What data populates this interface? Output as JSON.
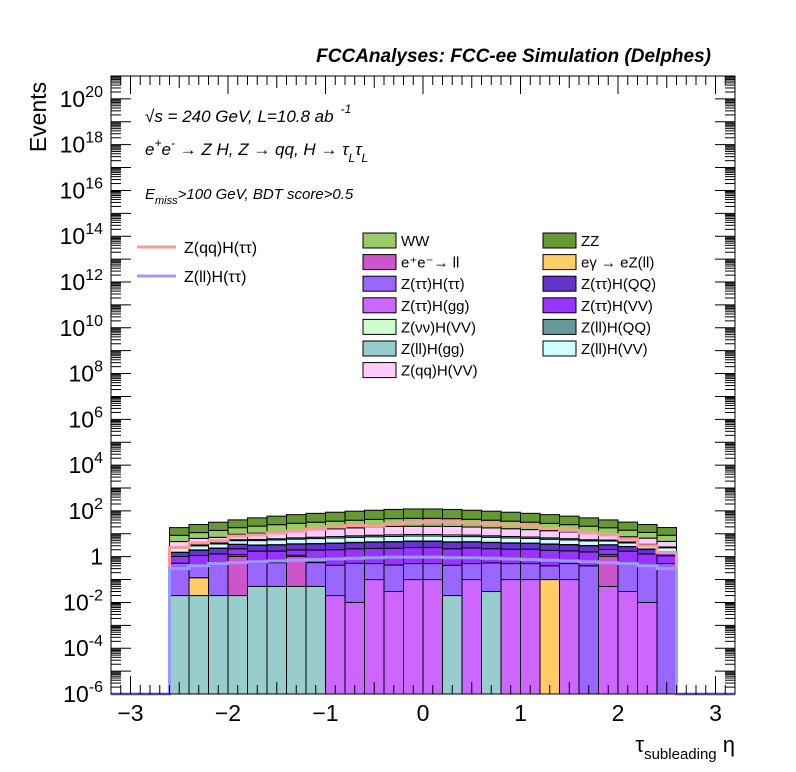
{
  "chart_data": {
    "type": "bar",
    "stacked": true,
    "log_y": true,
    "title": "FCCAnalyses: FCC-ee Simulation (Delphes)",
    "ylabel": "Events",
    "xlabel": "τ_subleading η",
    "xlabel_parts": {
      "main": "τ",
      "sub": "subleading",
      "tail": " η"
    },
    "annotations": {
      "energy": "√s = 240 GeV, L=10.8 ab",
      "energy_sup": "-1",
      "process": "e⁺e⁻ → Z H, Z → qq, H → τ_L τ_L",
      "process_parts": {
        "a": "e",
        "b": "+",
        "c": "e",
        "d": "-",
        "e": " → Z H, Z  → qq, H  → τ",
        "f": "L",
        "g": "τ",
        "h": "L"
      },
      "cuts": "E_miss>100 GeV, BDT score>0.5",
      "cuts_parts": {
        "a": "E",
        "b": "miss",
        "c": ">100 GeV, BDT score>0.5"
      }
    },
    "xlim": [
      -3.2,
      3.2
    ],
    "ylim": [
      1e-06,
      1e+21
    ],
    "x_ticks": [
      "−3",
      "−2",
      "−1",
      "0",
      "1",
      "2",
      "3"
    ],
    "x_tick_values": [
      -3,
      -2,
      -1,
      0,
      1,
      2,
      3
    ],
    "y_ticks": [
      {
        "base": "10",
        "exp": "-6",
        "value": 1e-06
      },
      {
        "base": "10",
        "exp": "-4",
        "value": 0.0001
      },
      {
        "base": "10",
        "exp": "-2",
        "value": 0.01
      },
      {
        "base": "1",
        "exp": "",
        "value": 1
      },
      {
        "base": "10",
        "exp": "2",
        "value": 100.0
      },
      {
        "base": "10",
        "exp": "4",
        "value": 10000.0
      },
      {
        "base": "10",
        "exp": "6",
        "value": 1000000.0
      },
      {
        "base": "10",
        "exp": "8",
        "value": 100000000.0
      },
      {
        "base": "10",
        "exp": "10",
        "value": 10000000000.0
      },
      {
        "base": "10",
        "exp": "12",
        "value": 1000000000000.0
      },
      {
        "base": "10",
        "exp": "14",
        "value": 100000000000000.0
      },
      {
        "base": "10",
        "exp": "16",
        "value": 1e+16
      },
      {
        "base": "10",
        "exp": "18",
        "value": 1e+18
      },
      {
        "base": "10",
        "exp": "20",
        "value": 1e+20
      }
    ],
    "bin_edges": [
      -2.6,
      -2.4,
      -2.2,
      -2.0,
      -1.8,
      -1.6,
      -1.4,
      -1.2,
      -1.0,
      -0.8,
      -0.6,
      -0.4,
      -0.2,
      0.0,
      0.2,
      0.4,
      0.6,
      0.8,
      1.0,
      1.2,
      1.4,
      1.6,
      1.8,
      2.0,
      2.2,
      2.4,
      2.6
    ],
    "stack_series": [
      {
        "name": "Z(ll)H(gg)",
        "color": "#99cccc",
        "values": [
          0.02,
          0.02,
          0.02,
          0.02,
          0.05,
          0.05,
          0.05,
          0.05,
          1e-06,
          1e-06,
          1e-06,
          1e-06,
          1e-06,
          1e-06,
          0.02,
          1e-06,
          0.03,
          1e-06,
          1e-06,
          1e-06,
          1e-06,
          1e-06,
          1e-06,
          1e-06,
          1e-06,
          1e-06
        ]
      },
      {
        "name": "eγ → eZ(ll)",
        "color": "#ffcc66",
        "values": [
          0,
          0.1,
          0,
          0,
          0,
          0,
          0,
          0,
          0,
          0,
          0,
          0,
          0,
          0,
          0,
          0,
          0,
          0,
          0,
          0.1,
          0,
          0,
          0,
          0,
          0,
          0
        ]
      },
      {
        "name": "Z(ττ)H(gg)",
        "color": "#cc66ff",
        "values": [
          0,
          0,
          0,
          0,
          0,
          0,
          0,
          0,
          0.02,
          0.01,
          0.1,
          0.03,
          0.1,
          0.1,
          0,
          0.1,
          0,
          0.1,
          0.1,
          0,
          0.1,
          0,
          0.05,
          0.03,
          0.01,
          0
        ]
      },
      {
        "name": "e⁺e⁻→ ll",
        "color": "#cc55cc",
        "values": [
          0,
          0,
          0,
          1.0,
          0,
          0,
          1.0,
          0,
          0,
          0,
          0,
          0,
          0,
          0,
          0,
          0,
          0,
          0,
          0,
          0,
          0,
          0,
          1.0,
          0,
          0,
          0
        ]
      },
      {
        "name": "Z(ττ)H(ττ)",
        "color": "#9966ff",
        "values": [
          0.5,
          0.3,
          0.5,
          0.2,
          0.5,
          0.5,
          0.1,
          0.5,
          0.4,
          0.5,
          0.4,
          0.4,
          0.4,
          0.4,
          0.4,
          0.4,
          0.5,
          0.4,
          0.4,
          0.3,
          0.4,
          0.4,
          0.2,
          0.5,
          0.4,
          0.5
        ]
      },
      {
        "name": "Z(ττ)H(VV)",
        "color": "#9933ff",
        "values": [
          0.5,
          0.7,
          0.8,
          1.0,
          1.2,
          1.2,
          0.8,
          1.4,
          1.6,
          1.7,
          1.8,
          1.9,
          2.0,
          2.0,
          1.8,
          1.9,
          1.7,
          1.6,
          1.6,
          1.5,
          1.3,
          1.2,
          0.8,
          1.2,
          0.9,
          0.6
        ]
      },
      {
        "name": "Z(ττ)H(QQ)",
        "color": "#6633cc",
        "values": [
          0.5,
          0.8,
          1.0,
          1.2,
          1.4,
          1.5,
          1.6,
          1.7,
          1.8,
          1.9,
          2.0,
          2.1,
          2.2,
          2.2,
          2.1,
          2.0,
          1.9,
          1.8,
          1.7,
          1.6,
          1.5,
          1.4,
          1.2,
          1.0,
          0.8,
          0.5
        ]
      },
      {
        "name": "Z(ll)H(QQ)",
        "color": "#669999",
        "values": [
          0.05,
          0.06,
          0.07,
          0.08,
          0.09,
          0.1,
          0.1,
          0.11,
          0.12,
          0.12,
          0.13,
          0.13,
          0.13,
          0.13,
          0.13,
          0.13,
          0.12,
          0.12,
          0.11,
          0.1,
          0.1,
          0.09,
          0.08,
          0.07,
          0.06,
          0.05
        ]
      },
      {
        "name": "Z(ll)H(VV)",
        "color": "#ccffff",
        "values": [
          0.8,
          1.0,
          1.2,
          1.5,
          1.8,
          2.0,
          2.2,
          2.4,
          2.6,
          2.8,
          3.0,
          3.1,
          3.2,
          3.2,
          3.1,
          3.0,
          2.8,
          2.6,
          2.4,
          2.2,
          2.0,
          1.8,
          1.5,
          1.2,
          1.0,
          0.8
        ]
      },
      {
        "name": "Z(νν)H(VV)",
        "color": "#ccffcc",
        "values": [
          0.2,
          0.3,
          0.4,
          0.5,
          0.6,
          0.7,
          0.8,
          0.9,
          1.0,
          1.1,
          1.2,
          1.3,
          1.3,
          1.3,
          1.3,
          1.2,
          1.1,
          1.0,
          0.9,
          0.8,
          0.7,
          0.6,
          0.5,
          0.4,
          0.3,
          0.2
        ]
      },
      {
        "name": "Z(qq)H(VV)",
        "color": "#ffccff",
        "values": [
          2,
          3,
          3,
          4,
          5,
          6,
          7,
          8,
          9,
          10,
          11,
          12,
          12,
          12,
          12,
          11,
          10,
          9,
          8,
          7,
          6,
          5,
          4,
          3,
          3,
          2
        ]
      },
      {
        "name": "WW",
        "color": "#99cc66",
        "values": [
          4,
          5,
          7,
          9,
          11,
          13,
          15,
          17,
          19,
          21,
          23,
          25,
          26,
          26,
          25,
          23,
          21,
          19,
          17,
          15,
          13,
          11,
          9,
          7,
          5,
          4
        ]
      },
      {
        "name": "ZZ",
        "color": "#669933",
        "values": [
          10,
          14,
          18,
          22,
          28,
          34,
          40,
          46,
          52,
          58,
          64,
          70,
          74,
          74,
          70,
          64,
          58,
          52,
          46,
          40,
          34,
          28,
          22,
          18,
          14,
          10
        ]
      }
    ],
    "line_series": [
      {
        "name": "Z(qq)H(ττ)",
        "color": "#ff9999",
        "values": [
          2.5,
          4,
          5,
          8,
          9,
          11,
          13,
          16,
          20,
          23,
          22,
          27,
          32,
          34,
          33,
          30,
          27,
          25,
          22,
          17,
          14,
          11,
          9,
          6,
          3,
          1.5
        ]
      },
      {
        "name": "Z(ll)H(ττ)",
        "color": "#9999ff",
        "values": [
          0.3,
          0.4,
          0.5,
          0.55,
          0.6,
          0.65,
          0.7,
          0.75,
          0.8,
          0.85,
          0.9,
          0.95,
          0.95,
          0.95,
          0.9,
          0.9,
          0.85,
          0.8,
          0.75,
          0.7,
          0.65,
          0.6,
          0.55,
          0.5,
          0.4,
          0.3
        ]
      }
    ],
    "legend_left": [
      {
        "label": "Z(qq)H(ττ)",
        "color": "#ff9999"
      },
      {
        "label": "Z(ll)H(ττ)",
        "color": "#9999ff"
      }
    ],
    "legend_right": [
      {
        "label": "WW",
        "color": "#99cc66"
      },
      {
        "label": "ZZ",
        "color": "#669933"
      },
      {
        "label": "e⁺e⁻→ ll",
        "color": "#cc55cc"
      },
      {
        "label": "eγ → eZ(ll)",
        "color": "#ffcc66"
      },
      {
        "label": "Z(ττ)H(ττ)",
        "color": "#9966ff"
      },
      {
        "label": "Z(ττ)H(QQ)",
        "color": "#6633cc"
      },
      {
        "label": "Z(ττ)H(gg)",
        "color": "#cc66ff"
      },
      {
        "label": "Z(ττ)H(VV)",
        "color": "#9933ff"
      },
      {
        "label": "Z(νν)H(VV)",
        "color": "#ccffcc"
      },
      {
        "label": "Z(ll)H(QQ)",
        "color": "#669999"
      },
      {
        "label": "Z(ll)H(gg)",
        "color": "#99cccc"
      },
      {
        "label": "Z(ll)H(VV)",
        "color": "#ccffff"
      },
      {
        "label": "Z(qq)H(VV)",
        "color": "#ffccff"
      }
    ]
  }
}
